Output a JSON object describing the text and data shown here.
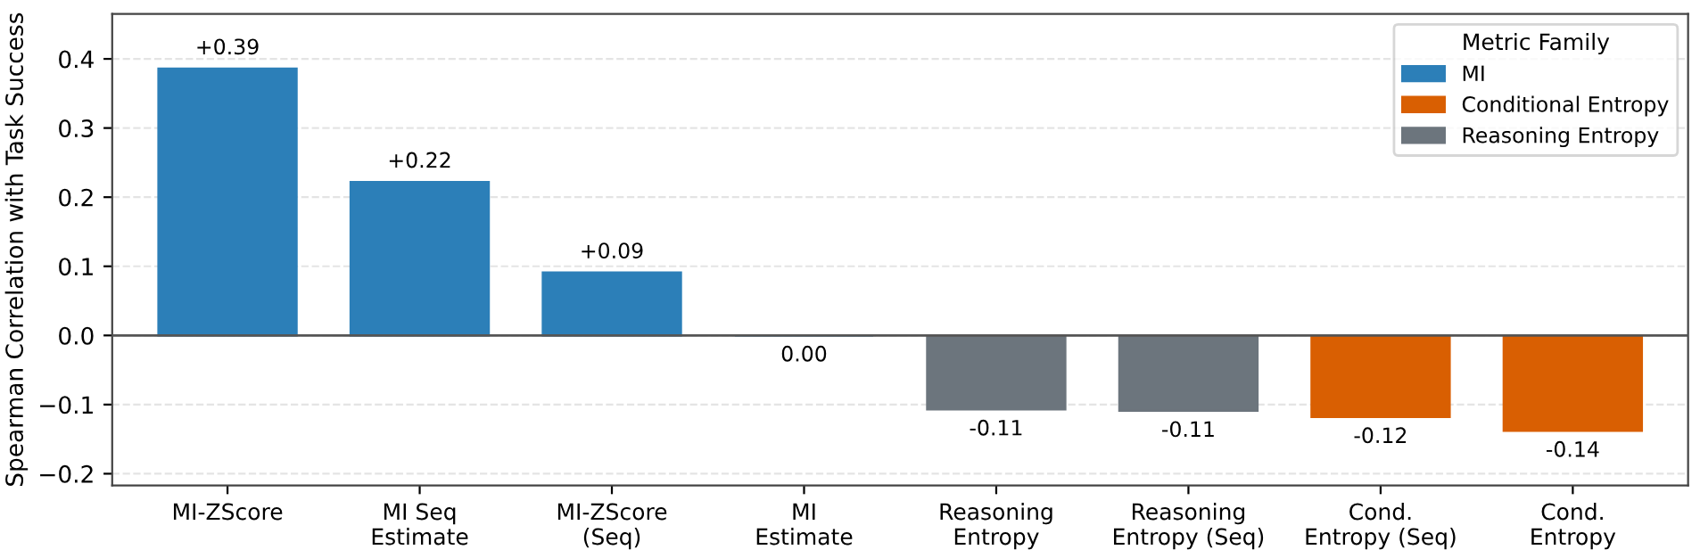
{
  "chart_data": {
    "type": "bar",
    "ylabel": "Spearman Correlation with Task Success",
    "legend_title": "Metric Family",
    "categories": [
      "MI-ZScore",
      "MI Seq\nEstimate",
      "MI-ZScore\n(Seq)",
      "MI\nEstimate",
      "Reasoning\nEntropy",
      "Reasoning\nEntropy (Seq)",
      "Cond.\nEntropy (Seq)",
      "Cond.\nEntropy"
    ],
    "series": [
      {
        "name": "MI",
        "color": "#2c7fb8",
        "values": [
          0.386,
          0.222,
          0.091,
          0.0,
          null,
          null,
          null,
          null
        ],
        "value_labels": [
          "+0.39",
          "+0.22",
          "+0.09",
          "0.00",
          null,
          null,
          null,
          null
        ]
      },
      {
        "name": "Conditional Entropy",
        "color": "#d95f02",
        "values": [
          null,
          null,
          null,
          null,
          null,
          null,
          -0.118,
          -0.138
        ],
        "value_labels": [
          null,
          null,
          null,
          null,
          null,
          null,
          "-0.12",
          "-0.14"
        ]
      },
      {
        "name": "Reasoning Entropy",
        "color": "#6c757d",
        "values": [
          null,
          null,
          null,
          null,
          -0.107,
          -0.109,
          null,
          null
        ],
        "value_labels": [
          null,
          null,
          null,
          null,
          "-0.11",
          "-0.11",
          null,
          null
        ]
      }
    ],
    "ylim": [
      -0.217,
      0.465
    ],
    "yticks": [
      {
        "value": -0.2,
        "label": "−0.2"
      },
      {
        "value": -0.1,
        "label": "−0.1"
      },
      {
        "value": 0,
        "label": "0.0"
      },
      0.1,
      0.2,
      0.3,
      0.4
    ],
    "ref_lines": [
      {
        "axis": "y",
        "value": 0,
        "color": "#555555"
      }
    ],
    "grid": "y",
    "legend": "top right"
  }
}
